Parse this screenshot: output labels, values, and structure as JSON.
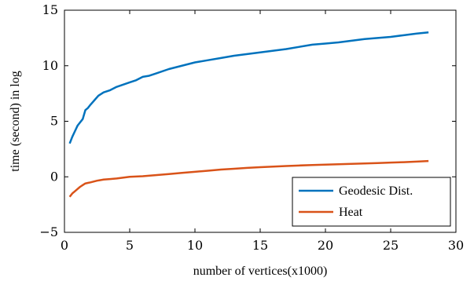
{
  "chart_data": {
    "type": "line",
    "title": "",
    "xlabel": "number of vertices(x1000)",
    "ylabel": "time (second) in log",
    "xlim": [
      0,
      30
    ],
    "ylim": [
      -5,
      15
    ],
    "x_ticks": [
      "0",
      "5",
      "10",
      "15",
      "20",
      "25",
      "30"
    ],
    "y_ticks": [
      "−5",
      "0",
      "5",
      "10",
      "15"
    ],
    "grid": false,
    "legend_position": "bottom-right",
    "series": [
      {
        "name": "Geodesic Dist.",
        "color": "#0072BD",
        "x": [
          0.4,
          0.6,
          0.8,
          1.0,
          1.2,
          1.4,
          1.6,
          1.8,
          2.0,
          2.3,
          2.6,
          3.0,
          3.5,
          4.0,
          4.5,
          5.0,
          5.5,
          6.0,
          6.5,
          7.0,
          8.0,
          9.0,
          10.0,
          11.0,
          12.0,
          13.0,
          14.0,
          15.0,
          16.0,
          17.0,
          18.0,
          19.0,
          20.0,
          21.0,
          22.0,
          23.0,
          24.0,
          25.0,
          26.0,
          27.0,
          27.9
        ],
        "y": [
          3.0,
          3.6,
          4.1,
          4.6,
          4.9,
          5.2,
          6.0,
          6.2,
          6.5,
          6.9,
          7.3,
          7.6,
          7.8,
          8.1,
          8.3,
          8.5,
          8.7,
          9.0,
          9.1,
          9.3,
          9.7,
          10.0,
          10.3,
          10.5,
          10.7,
          10.9,
          11.05,
          11.2,
          11.35,
          11.5,
          11.7,
          11.9,
          12.0,
          12.1,
          12.25,
          12.4,
          12.5,
          12.6,
          12.75,
          12.9,
          13.0
        ]
      },
      {
        "name": "Heat",
        "color": "#D95319",
        "x": [
          0.4,
          0.6,
          0.8,
          1.0,
          1.2,
          1.4,
          1.6,
          1.8,
          2.0,
          2.5,
          3.0,
          3.5,
          4.0,
          5.0,
          6.0,
          7.0,
          8.0,
          9.0,
          10.0,
          11.0,
          12.0,
          13.0,
          14.0,
          15.0,
          16.0,
          17.0,
          18.0,
          19.0,
          20.0,
          21.0,
          22.0,
          23.0,
          24.0,
          25.0,
          26.0,
          27.0,
          27.9
        ],
        "y": [
          -1.8,
          -1.5,
          -1.3,
          -1.1,
          -0.9,
          -0.75,
          -0.6,
          -0.55,
          -0.5,
          -0.35,
          -0.25,
          -0.2,
          -0.15,
          0.0,
          0.05,
          0.15,
          0.25,
          0.35,
          0.45,
          0.55,
          0.65,
          0.72,
          0.8,
          0.87,
          0.92,
          0.97,
          1.02,
          1.06,
          1.1,
          1.13,
          1.17,
          1.2,
          1.24,
          1.28,
          1.32,
          1.37,
          1.42
        ]
      }
    ]
  }
}
